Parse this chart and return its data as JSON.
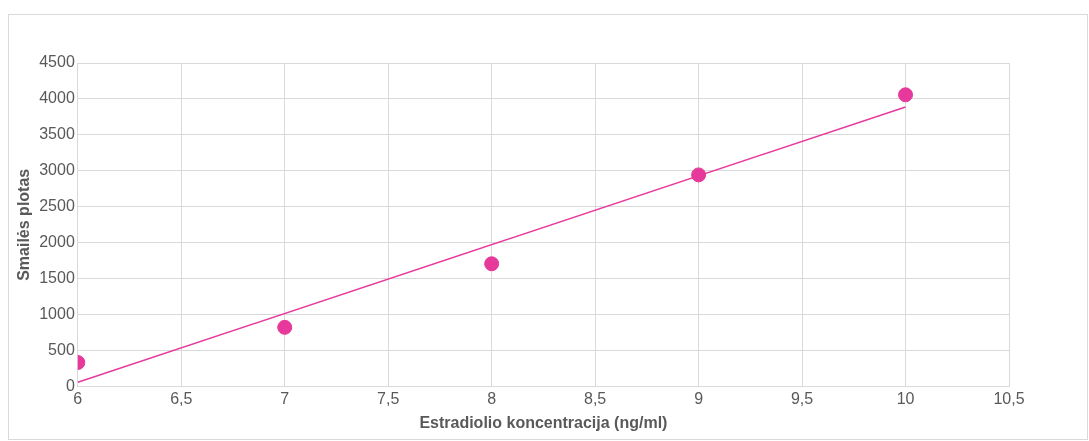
{
  "chart_data": {
    "type": "scatter",
    "xlabel": "Estradiolio koncentracija (ng/ml)",
    "ylabel": "Smailės plotas",
    "x": [
      6,
      7,
      8,
      9,
      10
    ],
    "series": [
      {
        "color": "#e6399b",
        "values": [
          335,
          824,
          1708,
          2944,
          4058
        ],
        "marker": "circle"
      },
      {
        "type": "line",
        "color": "#e6399b",
        "x": [
          6,
          10
        ],
        "values": [
          60,
          3888
        ],
        "marker": "none"
      }
    ],
    "xlim": [
      6,
      10.5
    ],
    "xticks": [
      6,
      {
        "value": 6.5,
        "label": "6,5"
      },
      7,
      {
        "value": 7.5,
        "label": "7,5"
      },
      8,
      {
        "value": 8.5,
        "label": "8,5"
      },
      9,
      {
        "value": 9.5,
        "label": "9,5"
      },
      10,
      {
        "value": 10.5,
        "label": "10,5"
      }
    ],
    "ylim": [
      0,
      4500
    ],
    "yticks": [
      0,
      500,
      1000,
      1500,
      2000,
      2500,
      3000,
      3500,
      4000,
      4500
    ],
    "grid": true,
    "legend": false
  }
}
